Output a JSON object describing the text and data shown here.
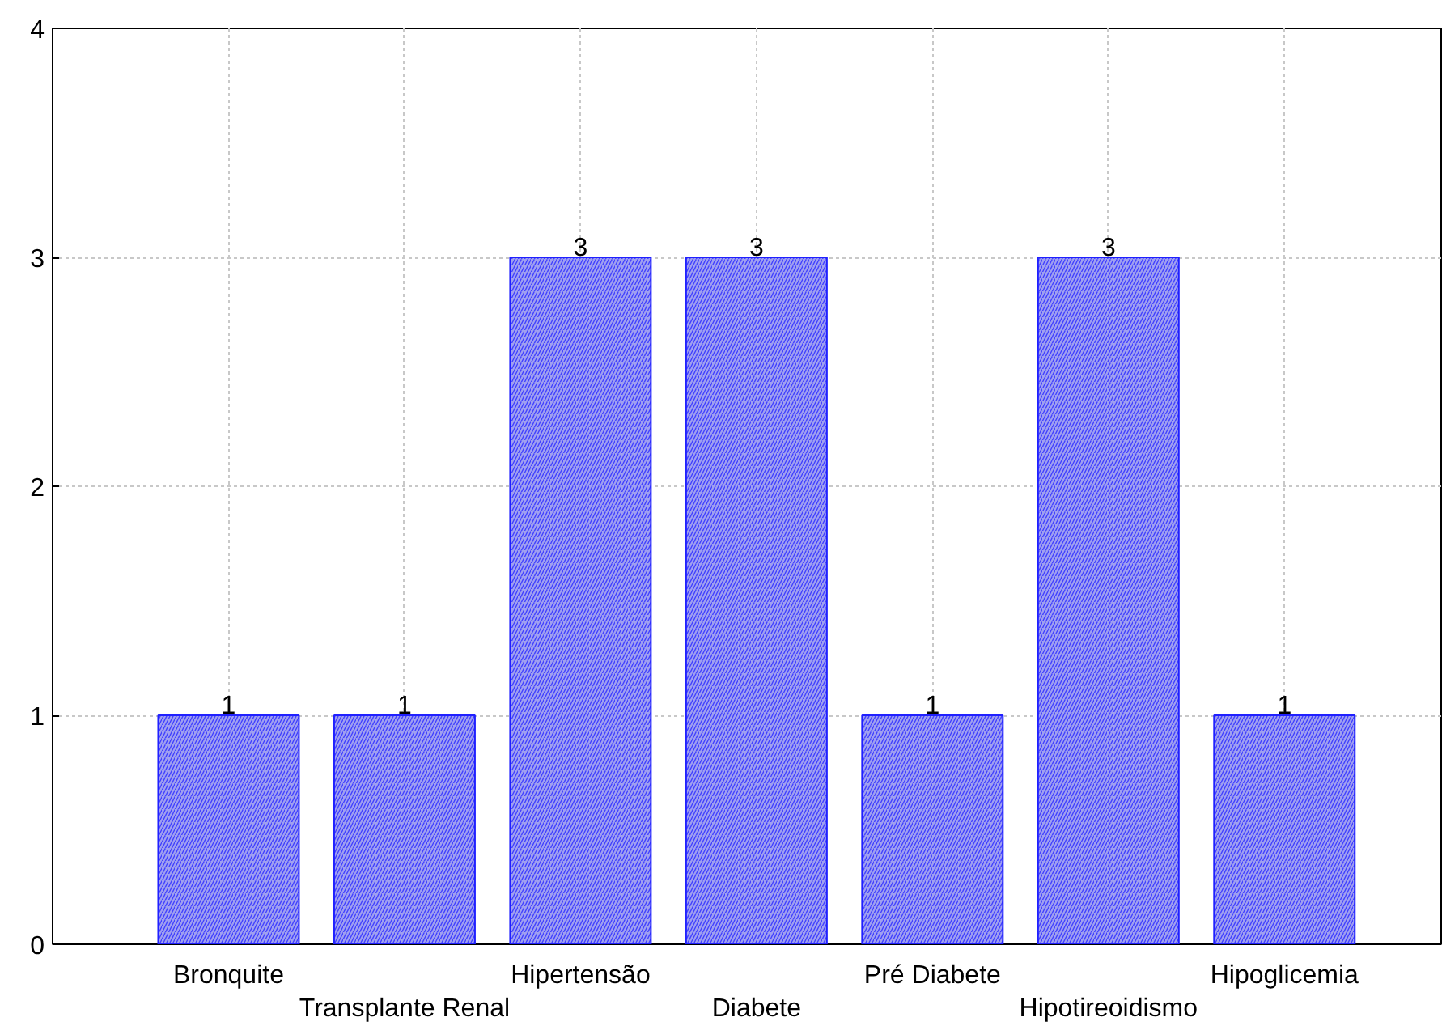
{
  "chart_data": {
    "type": "bar",
    "categories": [
      "Bronquite",
      "Transplante Renal",
      "Hipertensão",
      "Diabete",
      "Pré Diabete",
      "Hipotireoidismo",
      "Hipoglicemia"
    ],
    "values": [
      1,
      1,
      3,
      3,
      1,
      3,
      1
    ],
    "color": "#a0a0f0",
    "ylim": [
      0,
      4
    ],
    "yticks": [
      0,
      1,
      2,
      3,
      4
    ],
    "grid": true,
    "data_labels": true
  }
}
